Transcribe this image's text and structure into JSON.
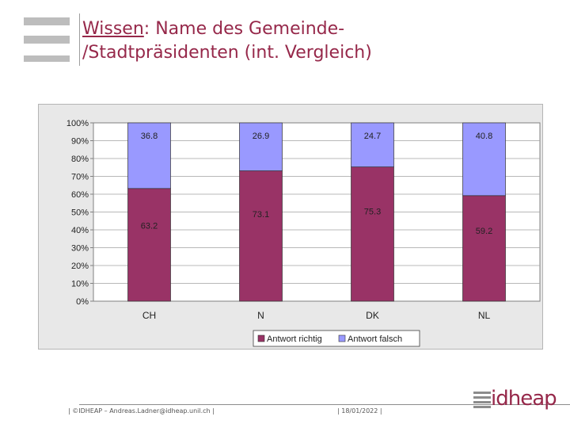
{
  "slide": {
    "title_underlined": "Wissen",
    "title_rest_line1": ": Name des Gemeinde-",
    "title_line2": "/Stadtpräsidenten (int. Vergleich)",
    "footer_left": "| ©IDHEAP – Andreas.Ladner@idheap.unil.ch |",
    "footer_date": "| 18/01/2022 |",
    "logo_text": "idheap"
  },
  "colors": {
    "title": "#96284a",
    "series_correct": "#993366",
    "series_wrong": "#9999ff",
    "plot_bg": "#ffffff",
    "frame_bg": "#e8e8e8"
  },
  "chart_data": {
    "type": "bar",
    "stacked": true,
    "categories": [
      "CH",
      "N",
      "DK",
      "NL"
    ],
    "series": [
      {
        "name": "Antwort richtig",
        "values": [
          63.2,
          73.1,
          75.3,
          59.2
        ]
      },
      {
        "name": "Antwort falsch",
        "values": [
          36.8,
          26.9,
          24.7,
          40.8
        ]
      }
    ],
    "y_ticks": [
      "0%",
      "10%",
      "20%",
      "30%",
      "40%",
      "50%",
      "60%",
      "70%",
      "80%",
      "90%",
      "100%"
    ],
    "ylim": [
      0,
      100
    ],
    "grid": true,
    "legend_position": "bottom"
  }
}
